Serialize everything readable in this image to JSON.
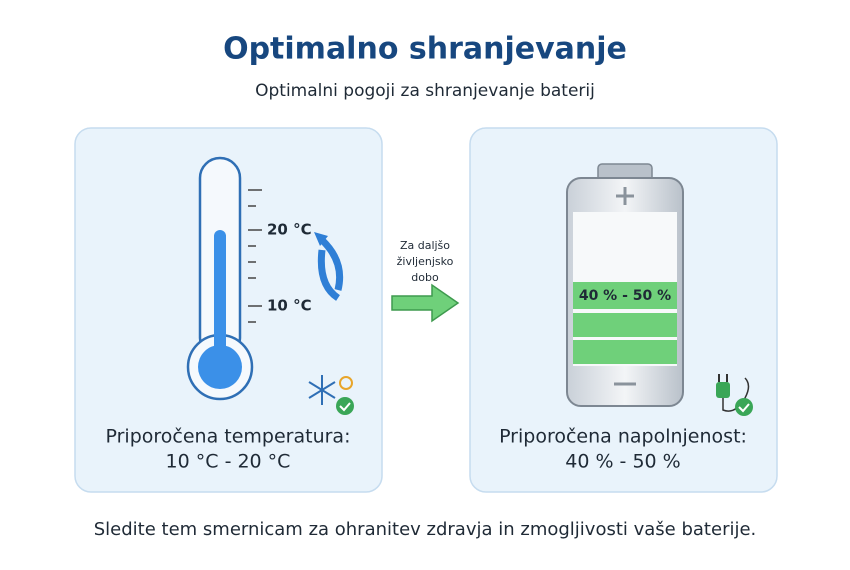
{
  "header": {
    "title": "Optimalno shranjevanje",
    "subtitle": "Optimalni pogoji za shranjevanje baterij"
  },
  "temperature_panel": {
    "scale_labels": [
      "20 °C",
      "10 °C"
    ],
    "caption": [
      "Priporočena temperatura:",
      "10 °C - 20 °C"
    ]
  },
  "arrow": {
    "label": [
      "Za daljšo",
      "življenjsko",
      "dobo"
    ]
  },
  "charge_panel": {
    "battery_label": "40 % - 50 %",
    "caption": [
      "Priporočena napolnjenost:",
      "40 % - 50 %"
    ]
  },
  "footer": "Sledite tem smernicam za ohranitev zdravja in zmogljivosti vaše baterije."
}
